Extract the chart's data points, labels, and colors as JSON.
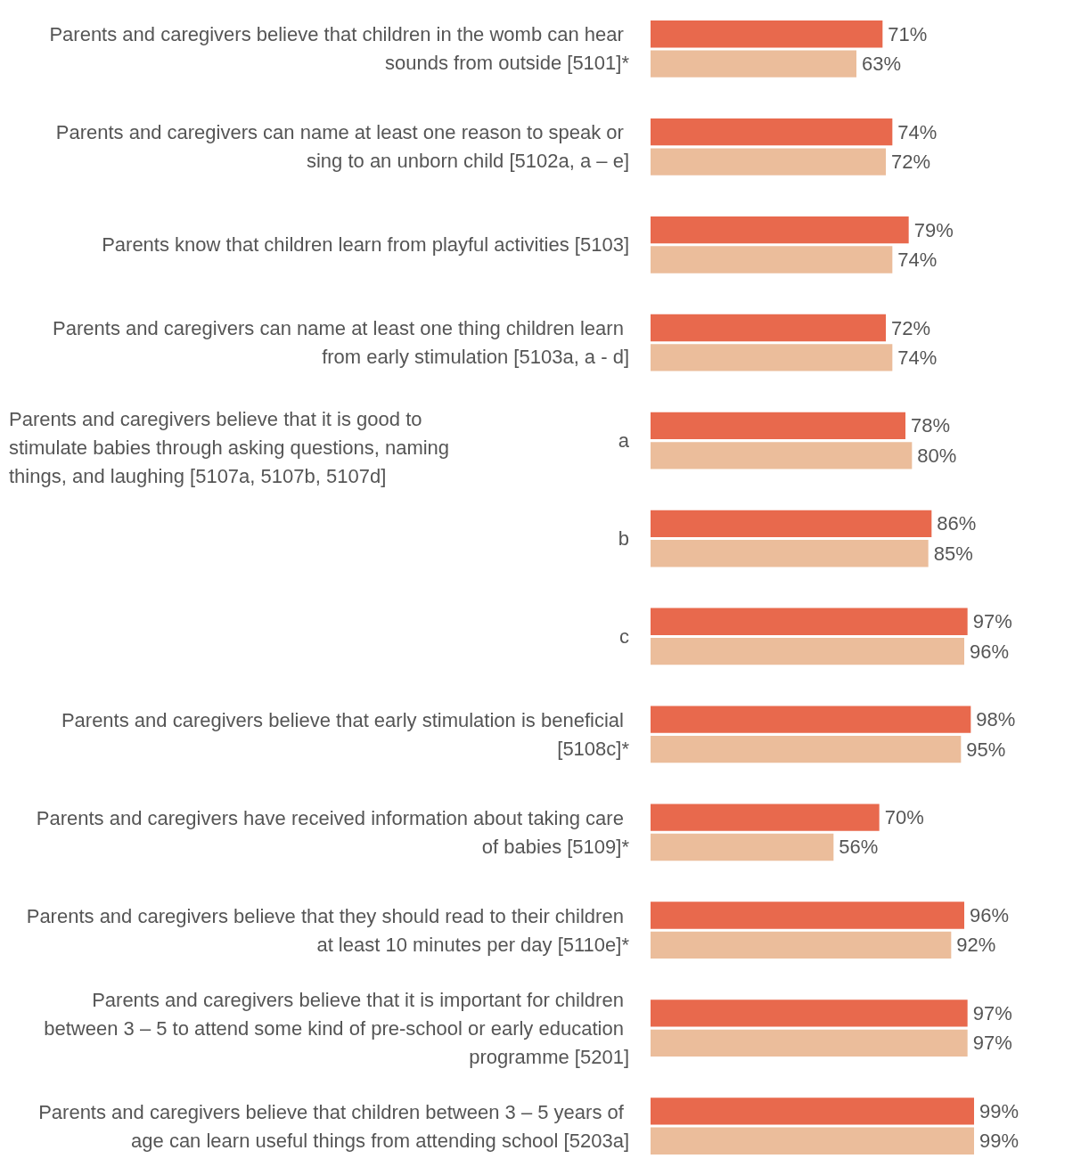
{
  "chart_data": {
    "type": "bar",
    "orientation": "horizontal",
    "categories": [
      "Parents and caregivers believe that children in the womb can hear sounds from outside [5101]*",
      "Parents and caregivers can name at least one reason to speak or sing to an unborn child [5102a, a – e]",
      "Parents know that children learn from playful activities [5103]",
      "Parents and caregivers can name at least one thing children learn from early stimulation [5103a, a - d]",
      "a",
      "b",
      "c",
      "Parents and caregivers believe that early stimulation is beneficial [5108c]*",
      "Parents and caregivers have received information about taking care of babies [5109]*",
      "Parents and caregivers believe that they should read to their children at least 10 minutes per day [5110e]*",
      "Parents and caregivers believe that it is important for children between 3 – 5 to attend some kind of pre-school or early education programme [5201]",
      "Parents and caregivers believe that children between 3 – 5 years of age can learn useful things from attending school [5203a]"
    ],
    "series": [
      {
        "color": "#e8694d",
        "values": [
          71,
          74,
          79,
          72,
          78,
          86,
          97,
          98,
          70,
          96,
          97,
          99
        ],
        "value_labels": [
          "71%",
          "74%",
          "79%",
          "72%",
          "78%",
          "86%",
          "97%",
          "98%",
          "70%",
          "96%",
          "97%",
          "99%"
        ]
      },
      {
        "color": "#ebbd9b",
        "values": [
          63,
          72,
          74,
          74,
          80,
          85,
          96,
          95,
          56,
          92,
          97,
          99
        ],
        "value_labels": [
          "63%",
          "72%",
          "74%",
          "74%",
          "80%",
          "85%",
          "96%",
          "95%",
          "56%",
          "92%",
          "97%",
          "99%"
        ]
      }
    ],
    "tick_labels": "y",
    "annotations": [
      "Parents and caregivers believe that it is good to stimulate babies through asking questions, naming things, and laughing [5107a, 5107b, 5107d]"
    ]
  }
}
